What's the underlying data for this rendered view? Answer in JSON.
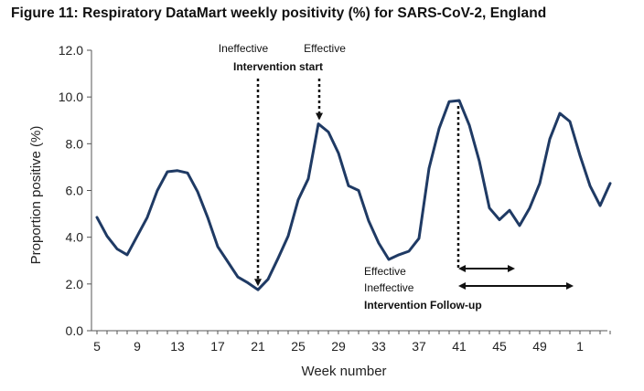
{
  "title": "Figure 11: Respiratory DataMart weekly positivity (%) for SARS-CoV-2, England",
  "chart_data": {
    "type": "line",
    "title": "Figure 11: Respiratory DataMart weekly positivity (%) for SARS-CoV-2, England",
    "xlabel": "Week number",
    "ylabel": "Proportion positive (%)",
    "ylim": [
      0,
      12
    ],
    "yticks": [
      "0.0",
      "2.0",
      "4.0",
      "6.0",
      "8.0",
      "10.0",
      "12.0"
    ],
    "xtick_labels": [
      "5",
      "9",
      "13",
      "17",
      "21",
      "25",
      "29",
      "33",
      "37",
      "41",
      "45",
      "49",
      "1"
    ],
    "xtick_index_step": 4,
    "grid": false,
    "line_color": "#1f3a64",
    "series": [
      {
        "name": "SARS-CoV-2 positivity",
        "values": [
          4.85,
          4.05,
          3.5,
          3.25,
          4.05,
          4.85,
          6.0,
          6.8,
          6.85,
          6.75,
          5.95,
          4.85,
          3.6,
          2.95,
          2.3,
          2.05,
          1.75,
          2.2,
          3.1,
          4.05,
          5.6,
          6.5,
          8.85,
          8.5,
          7.6,
          6.2,
          6.0,
          4.7,
          3.75,
          3.05,
          3.25,
          3.4,
          3.95,
          6.95,
          8.65,
          9.8,
          9.85,
          8.8,
          7.25,
          5.25,
          4.75,
          5.15,
          4.5,
          5.25,
          6.3,
          8.2,
          9.3,
          8.95,
          7.5,
          6.2,
          5.35,
          6.3
        ]
      }
    ],
    "annotations": {
      "start_ineffective_label": "Ineffective",
      "start_effective_label": "Effective",
      "start_title": "Intervention start",
      "followup_effective_label": "Effective",
      "followup_ineffective_label": "Ineffective",
      "followup_title": "Intervention Follow-up",
      "start_ineffective_index": 16,
      "start_effective_index": 22,
      "followup_index": 36,
      "followup_effective_end_index": 41,
      "followup_ineffective_end_index": 47
    }
  }
}
